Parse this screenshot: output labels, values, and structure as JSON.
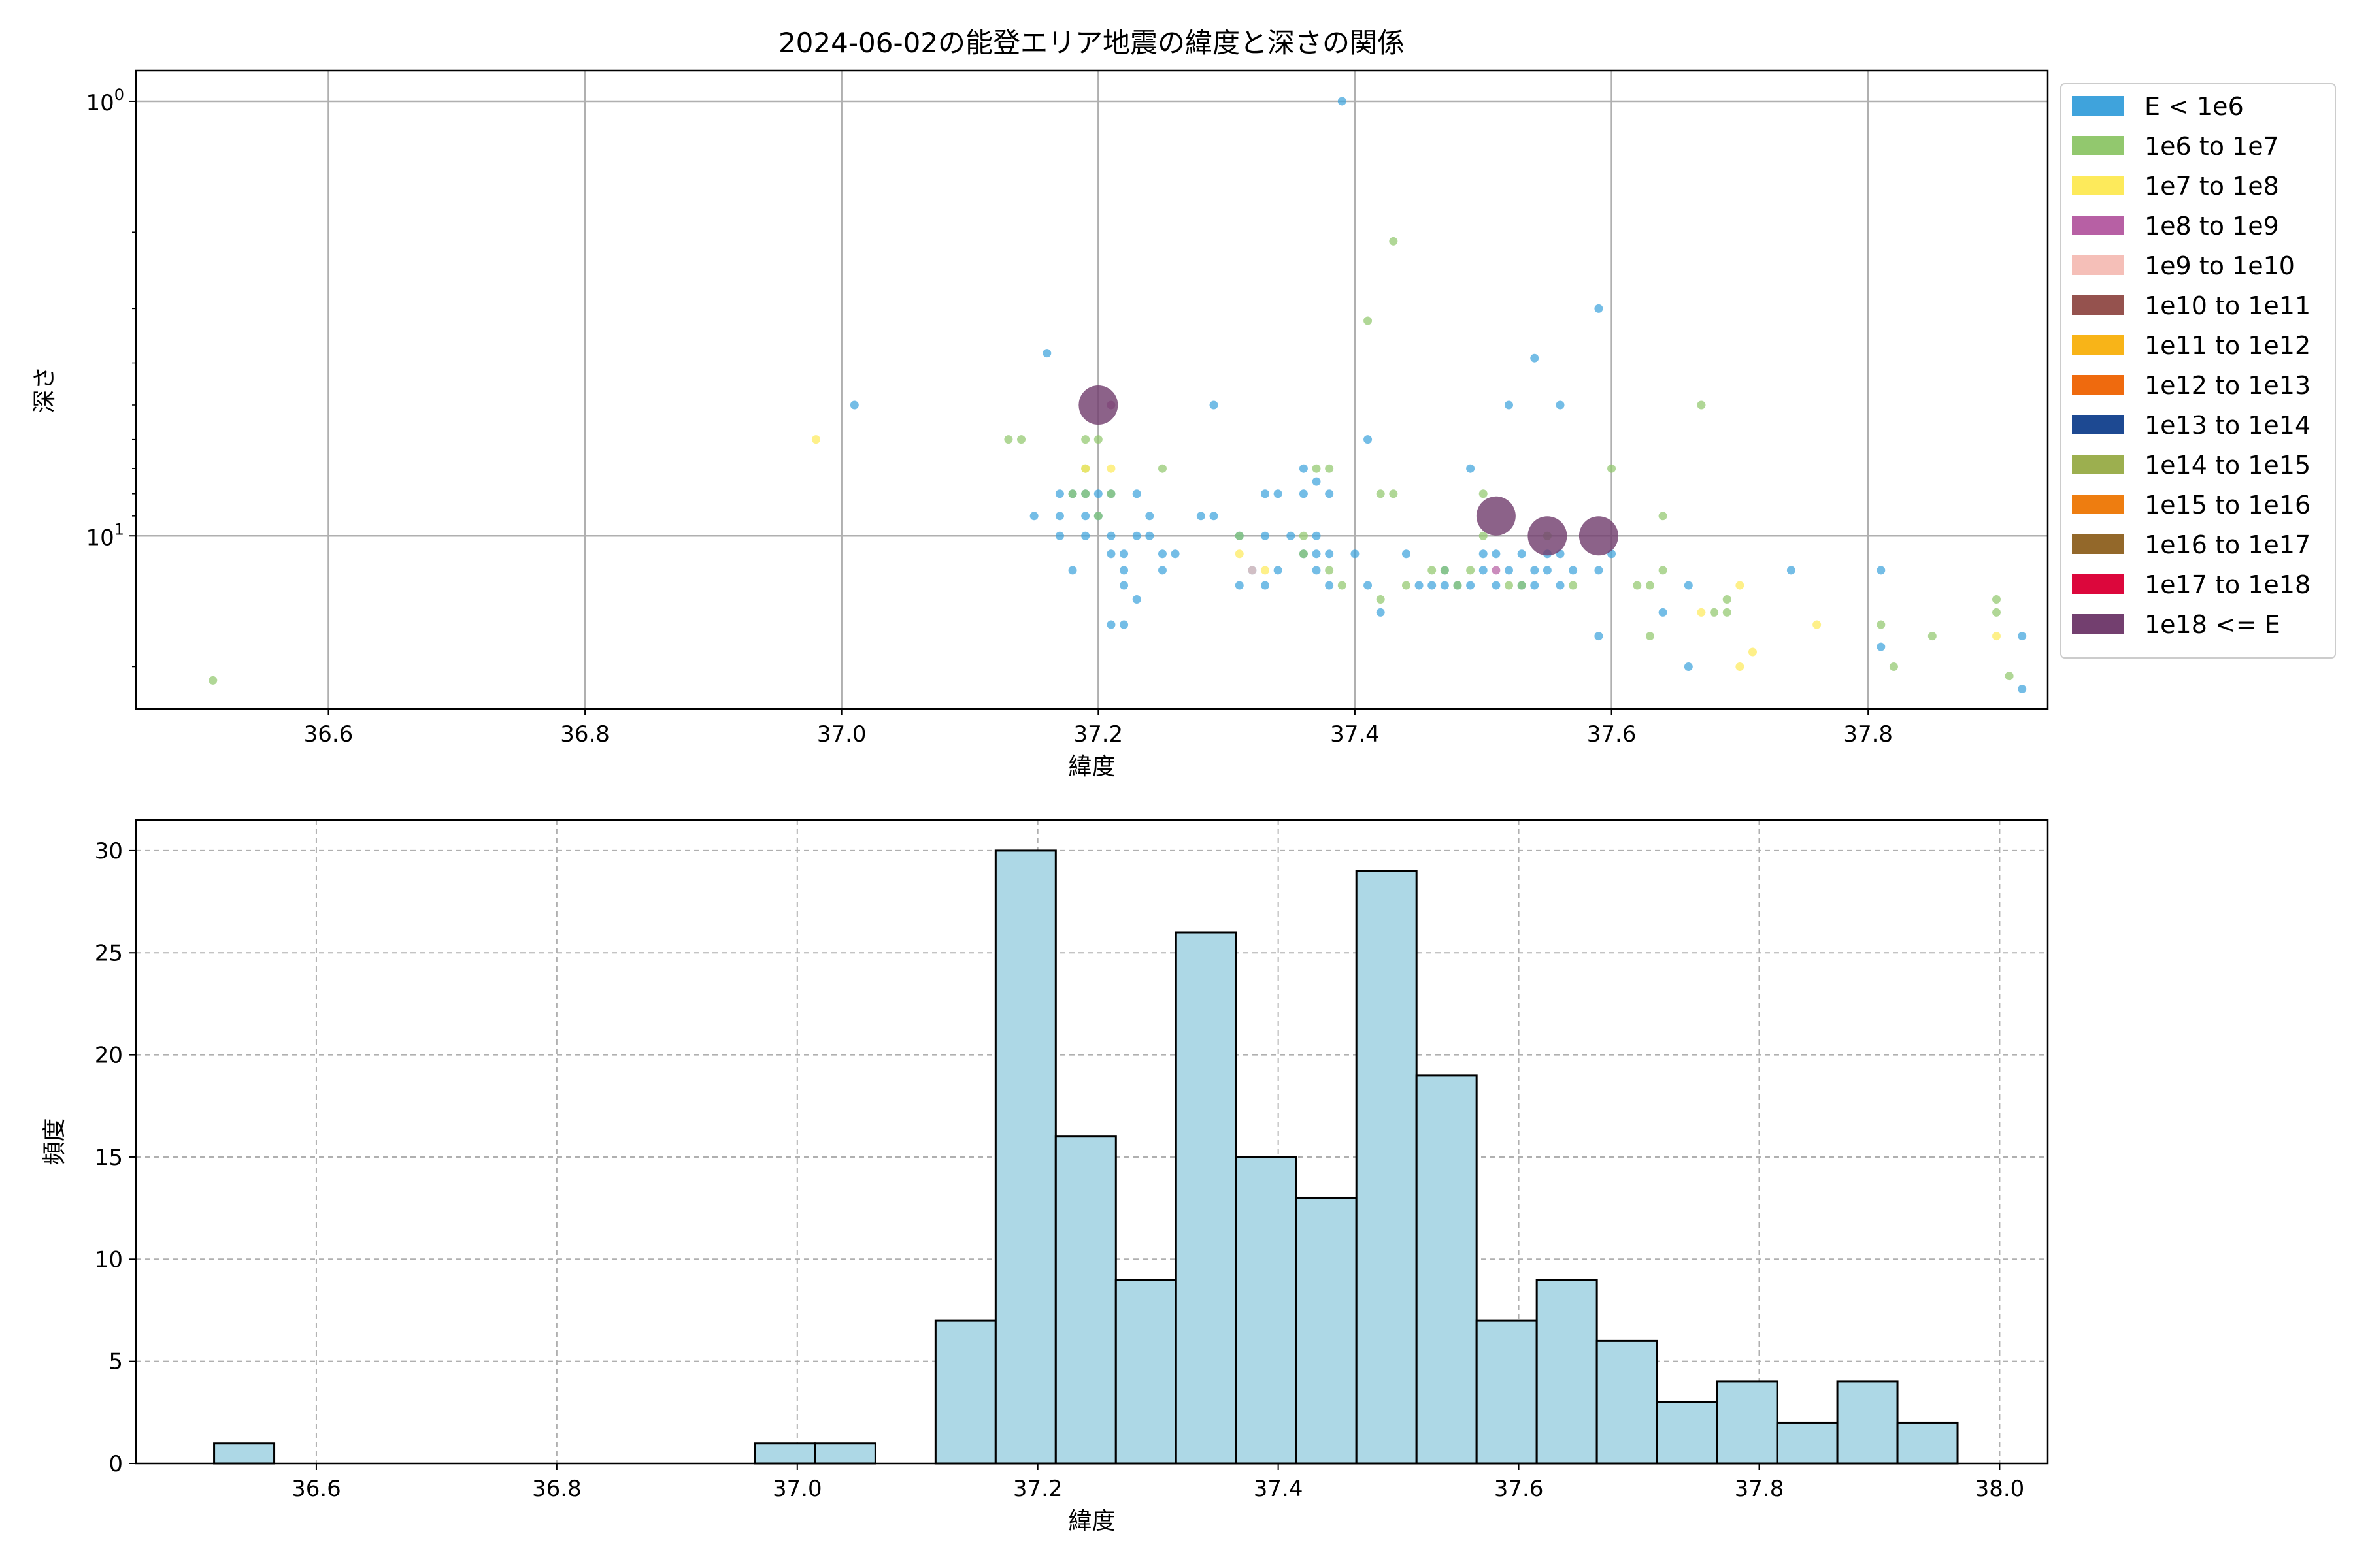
{
  "chart_data": [
    {
      "type": "scatter",
      "title": "2024-06-02の能登エリア地震の緯度と深さの関係",
      "xlabel": "緯度",
      "ylabel": "深さ",
      "xlim": [
        36.45,
        37.94
      ],
      "ylim": [
        25,
        0.85
      ],
      "yscale": "log",
      "yaxis_inverted": true,
      "x_ticks": [
        36.6,
        36.8,
        37.0,
        37.2,
        37.4,
        37.6,
        37.8
      ],
      "y_ticks": [
        {
          "value": 1,
          "base": "10",
          "exp": "0"
        },
        {
          "value": 10,
          "base": "10",
          "exp": "1"
        }
      ],
      "grid": true,
      "legend": {
        "placement": "outside-right",
        "entries": [
          {
            "label": "E < 1e6",
            "color": "#3fa3dc"
          },
          {
            "label": "1e6 to 1e7",
            "color": "#92c86e"
          },
          {
            "label": "1e7 to 1e8",
            "color": "#fdea5b"
          },
          {
            "label": "1e8 to 1e9",
            "color": "#b760a4"
          },
          {
            "label": "1e9 to 1e10",
            "color": "#f5bfb8"
          },
          {
            "label": "1e10 to 1e11",
            "color": "#95524e"
          },
          {
            "label": "1e11 to 1e12",
            "color": "#f8b418"
          },
          {
            "label": "1e12 to 1e13",
            "color": "#ef6a0e"
          },
          {
            "label": "1e13 to 1e14",
            "color": "#1d4992"
          },
          {
            "label": "1e14 to 1e15",
            "color": "#9caf4f"
          },
          {
            "label": "1e15 to 1e16",
            "color": "#ee7d10"
          },
          {
            "label": "1e16 to 1e17",
            "color": "#93682a"
          },
          {
            "label": "1e17 to 1e18",
            "color": "#dc073c"
          },
          {
            "label": "1e18 <= E",
            "color": "#733f6f"
          }
        ]
      },
      "series": [
        {
          "energy_class": 0,
          "points": [
            [
              37.39,
              1
            ],
            [
              37.59,
              3
            ],
            [
              37.54,
              3.9
            ],
            [
              37.16,
              3.8
            ],
            [
              37.01,
              5
            ],
            [
              37.29,
              5
            ],
            [
              37.52,
              5
            ],
            [
              37.56,
              5
            ],
            [
              37.41,
              6
            ],
            [
              37.49,
              7
            ],
            [
              37.36,
              7
            ],
            [
              37.37,
              7.5
            ],
            [
              37.15,
              9
            ],
            [
              37.17,
              8
            ],
            [
              37.18,
              8
            ],
            [
              37.19,
              8
            ],
            [
              37.2,
              8
            ],
            [
              37.21,
              8
            ],
            [
              37.23,
              8
            ],
            [
              37.17,
              9
            ],
            [
              37.19,
              9
            ],
            [
              37.2,
              9
            ],
            [
              37.24,
              9
            ],
            [
              37.28,
              9
            ],
            [
              37.29,
              9
            ],
            [
              37.33,
              8
            ],
            [
              37.34,
              8
            ],
            [
              37.36,
              8
            ],
            [
              37.38,
              8
            ],
            [
              37.17,
              10
            ],
            [
              37.19,
              10
            ],
            [
              37.21,
              10
            ],
            [
              37.23,
              10
            ],
            [
              37.24,
              10
            ],
            [
              37.31,
              10
            ],
            [
              37.33,
              10
            ],
            [
              37.35,
              10
            ],
            [
              37.37,
              10
            ],
            [
              37.21,
              11
            ],
            [
              37.22,
              11
            ],
            [
              37.25,
              11
            ],
            [
              37.26,
              11
            ],
            [
              37.36,
              11
            ],
            [
              37.37,
              11
            ],
            [
              37.38,
              11
            ],
            [
              37.4,
              11
            ],
            [
              37.44,
              11
            ],
            [
              37.5,
              11
            ],
            [
              37.51,
              11
            ],
            [
              37.53,
              11
            ],
            [
              37.55,
              11
            ],
            [
              37.56,
              11
            ],
            [
              37.6,
              11
            ],
            [
              37.18,
              12
            ],
            [
              37.22,
              12
            ],
            [
              37.25,
              12
            ],
            [
              37.32,
              12
            ],
            [
              37.34,
              12
            ],
            [
              37.37,
              12
            ],
            [
              37.47,
              12
            ],
            [
              37.5,
              12
            ],
            [
              37.52,
              12
            ],
            [
              37.54,
              12
            ],
            [
              37.55,
              12
            ],
            [
              37.57,
              12
            ],
            [
              37.59,
              12
            ],
            [
              37.22,
              13
            ],
            [
              37.31,
              13
            ],
            [
              37.33,
              13
            ],
            [
              37.38,
              13
            ],
            [
              37.41,
              13
            ],
            [
              37.45,
              13
            ],
            [
              37.46,
              13
            ],
            [
              37.47,
              13
            ],
            [
              37.48,
              13
            ],
            [
              37.49,
              13
            ],
            [
              37.51,
              13
            ],
            [
              37.53,
              13
            ],
            [
              37.54,
              13
            ],
            [
              37.56,
              13
            ],
            [
              37.66,
              13
            ],
            [
              37.23,
              14
            ],
            [
              37.42,
              15
            ],
            [
              37.64,
              15
            ],
            [
              37.74,
              12
            ],
            [
              37.81,
              12
            ],
            [
              37.22,
              16
            ],
            [
              37.21,
              16
            ],
            [
              37.59,
              17
            ],
            [
              37.81,
              18
            ],
            [
              37.92,
              17
            ],
            [
              37.66,
              20
            ],
            [
              37.92,
              22.5
            ]
          ]
        },
        {
          "energy_class": 1,
          "points": [
            [
              37.43,
              2.1
            ],
            [
              37.41,
              3.2
            ],
            [
              37.67,
              5
            ],
            [
              37.13,
              6
            ],
            [
              37.14,
              6
            ],
            [
              37.19,
              6
            ],
            [
              37.2,
              6
            ],
            [
              37.19,
              7
            ],
            [
              37.25,
              7
            ],
            [
              37.37,
              7
            ],
            [
              37.38,
              7
            ],
            [
              37.18,
              8
            ],
            [
              37.19,
              8
            ],
            [
              37.21,
              8
            ],
            [
              37.42,
              8
            ],
            [
              37.43,
              8
            ],
            [
              37.5,
              8
            ],
            [
              37.6,
              7
            ],
            [
              37.2,
              9
            ],
            [
              37.64,
              9
            ],
            [
              37.31,
              10
            ],
            [
              37.36,
              10
            ],
            [
              37.5,
              10
            ],
            [
              37.55,
              10
            ],
            [
              37.36,
              11
            ],
            [
              37.38,
              12
            ],
            [
              37.46,
              12
            ],
            [
              37.47,
              12
            ],
            [
              37.49,
              12
            ],
            [
              37.44,
              13
            ],
            [
              37.48,
              13
            ],
            [
              37.52,
              13
            ],
            [
              37.53,
              13
            ],
            [
              37.57,
              13
            ],
            [
              37.39,
              13
            ],
            [
              37.62,
              13
            ],
            [
              37.63,
              13
            ],
            [
              37.64,
              12
            ],
            [
              37.69,
              14
            ],
            [
              37.42,
              14
            ],
            [
              37.68,
              15
            ],
            [
              37.69,
              15
            ],
            [
              37.81,
              16
            ],
            [
              37.9,
              14
            ],
            [
              37.9,
              15
            ],
            [
              37.85,
              17
            ],
            [
              37.63,
              17
            ],
            [
              37.82,
              20
            ],
            [
              37.91,
              21
            ],
            [
              36.51,
              21.5
            ]
          ]
        },
        {
          "energy_class": 2,
          "points": [
            [
              36.98,
              6
            ],
            [
              37.19,
              7
            ],
            [
              37.21,
              7
            ],
            [
              37.31,
              11
            ],
            [
              37.33,
              12
            ],
            [
              37.7,
              13
            ],
            [
              37.67,
              15
            ],
            [
              37.76,
              16
            ],
            [
              37.71,
              18.5
            ],
            [
              37.7,
              20
            ],
            [
              37.9,
              17
            ]
          ]
        },
        {
          "energy_class": 3,
          "points": [
            [
              37.21,
              5
            ],
            [
              37.51,
              12
            ]
          ]
        },
        {
          "energy_class": 4,
          "points": [
            [
              37.32,
              12
            ]
          ]
        },
        {
          "energy_class": 13,
          "points": [
            [
              37.2,
              5
            ],
            [
              37.51,
              9
            ],
            [
              37.55,
              10
            ],
            [
              37.59,
              10
            ]
          ]
        }
      ]
    },
    {
      "type": "bar",
      "subtype": "histogram",
      "xlabel": "緯度",
      "ylabel": "頻度",
      "xlim": [
        36.45,
        38.04
      ],
      "ylim": [
        0,
        31.5
      ],
      "x_ticks": [
        36.6,
        36.8,
        37.0,
        37.2,
        37.4,
        37.6,
        37.8,
        38.0
      ],
      "y_ticks": [
        0,
        5,
        10,
        15,
        20,
        25,
        30
      ],
      "grid": true,
      "bar_color": "#add8e6",
      "bins": [
        {
          "x0": 36.515,
          "x1": 36.565,
          "count": 1
        },
        {
          "x0": 36.965,
          "x1": 37.015,
          "count": 1
        },
        {
          "x0": 37.015,
          "x1": 37.065,
          "count": 1
        },
        {
          "x0": 37.115,
          "x1": 37.165,
          "count": 7
        },
        {
          "x0": 37.165,
          "x1": 37.215,
          "count": 30
        },
        {
          "x0": 37.215,
          "x1": 37.265,
          "count": 16
        },
        {
          "x0": 37.265,
          "x1": 37.315,
          "count": 9
        },
        {
          "x0": 37.315,
          "x1": 37.365,
          "count": 26
        },
        {
          "x0": 37.365,
          "x1": 37.415,
          "count": 15
        },
        {
          "x0": 37.415,
          "x1": 37.465,
          "count": 13
        },
        {
          "x0": 37.465,
          "x1": 37.515,
          "count": 29
        },
        {
          "x0": 37.515,
          "x1": 37.565,
          "count": 19
        },
        {
          "x0": 37.565,
          "x1": 37.615,
          "count": 7
        },
        {
          "x0": 37.615,
          "x1": 37.665,
          "count": 9
        },
        {
          "x0": 37.665,
          "x1": 37.715,
          "count": 6
        },
        {
          "x0": 37.715,
          "x1": 37.765,
          "count": 3
        },
        {
          "x0": 37.765,
          "x1": 37.815,
          "count": 4
        },
        {
          "x0": 37.815,
          "x1": 37.865,
          "count": 2
        },
        {
          "x0": 37.865,
          "x1": 37.915,
          "count": 4
        },
        {
          "x0": 37.915,
          "x1": 37.965,
          "count": 2
        }
      ]
    }
  ]
}
